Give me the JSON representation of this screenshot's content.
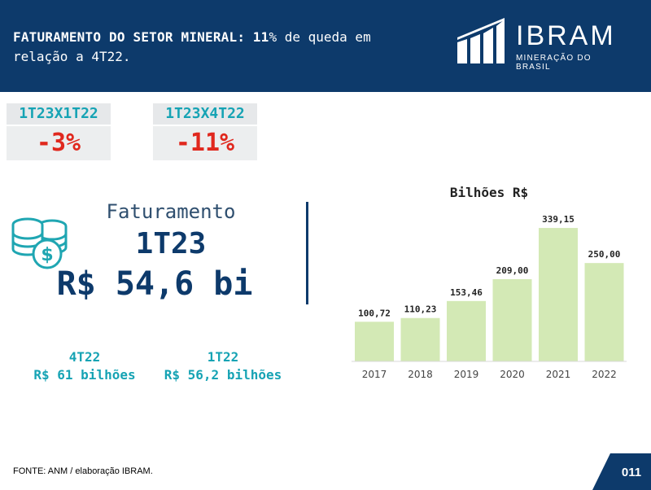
{
  "header": {
    "title_strong": "FATURAMENTO DO SETOR MINERAL:",
    "title_number": "11",
    "title_rest": "% de queda em relação a 4T22."
  },
  "logo": {
    "icon": "ibram-bars-logo-icon",
    "name": "IBRAM",
    "subtitle": "MINERAÇÃO DO BRASIL"
  },
  "kpis": [
    {
      "label": "1T23X1T22",
      "value": "-3%"
    },
    {
      "label": "1T23X4T22",
      "value": "-11%"
    }
  ],
  "faturamento": {
    "icon": "coins-dollar-icon",
    "label": "Faturamento",
    "period": "1T23",
    "value": "R$ 54,6 bi"
  },
  "comparisons": [
    {
      "period": "4T22",
      "value": "R$ 61 bilhões"
    },
    {
      "period": "1T22",
      "value": "R$ 56,2 bilhões"
    }
  ],
  "chart_data": {
    "type": "bar",
    "title": "Bilhões R$",
    "categories": [
      "2017",
      "2018",
      "2019",
      "2020",
      "2021",
      "2022"
    ],
    "values": [
      100.72,
      110.23,
      153.46,
      209.0,
      339.15,
      250.0
    ],
    "value_labels": [
      "100,72",
      "110,23",
      "153,46",
      "209,00",
      "339,15",
      "250,00"
    ],
    "xlabel": "",
    "ylabel": "",
    "ylim": [
      0,
      360
    ],
    "grid": false,
    "legend": "none",
    "bar_color": "#d3e9b5"
  },
  "footer": {
    "source": "FONTE: ANM / elaboração IBRAM.",
    "page": "011"
  },
  "colors": {
    "navy": "#0d3a6b",
    "teal": "#16a3b4",
    "red": "#e0281e"
  }
}
